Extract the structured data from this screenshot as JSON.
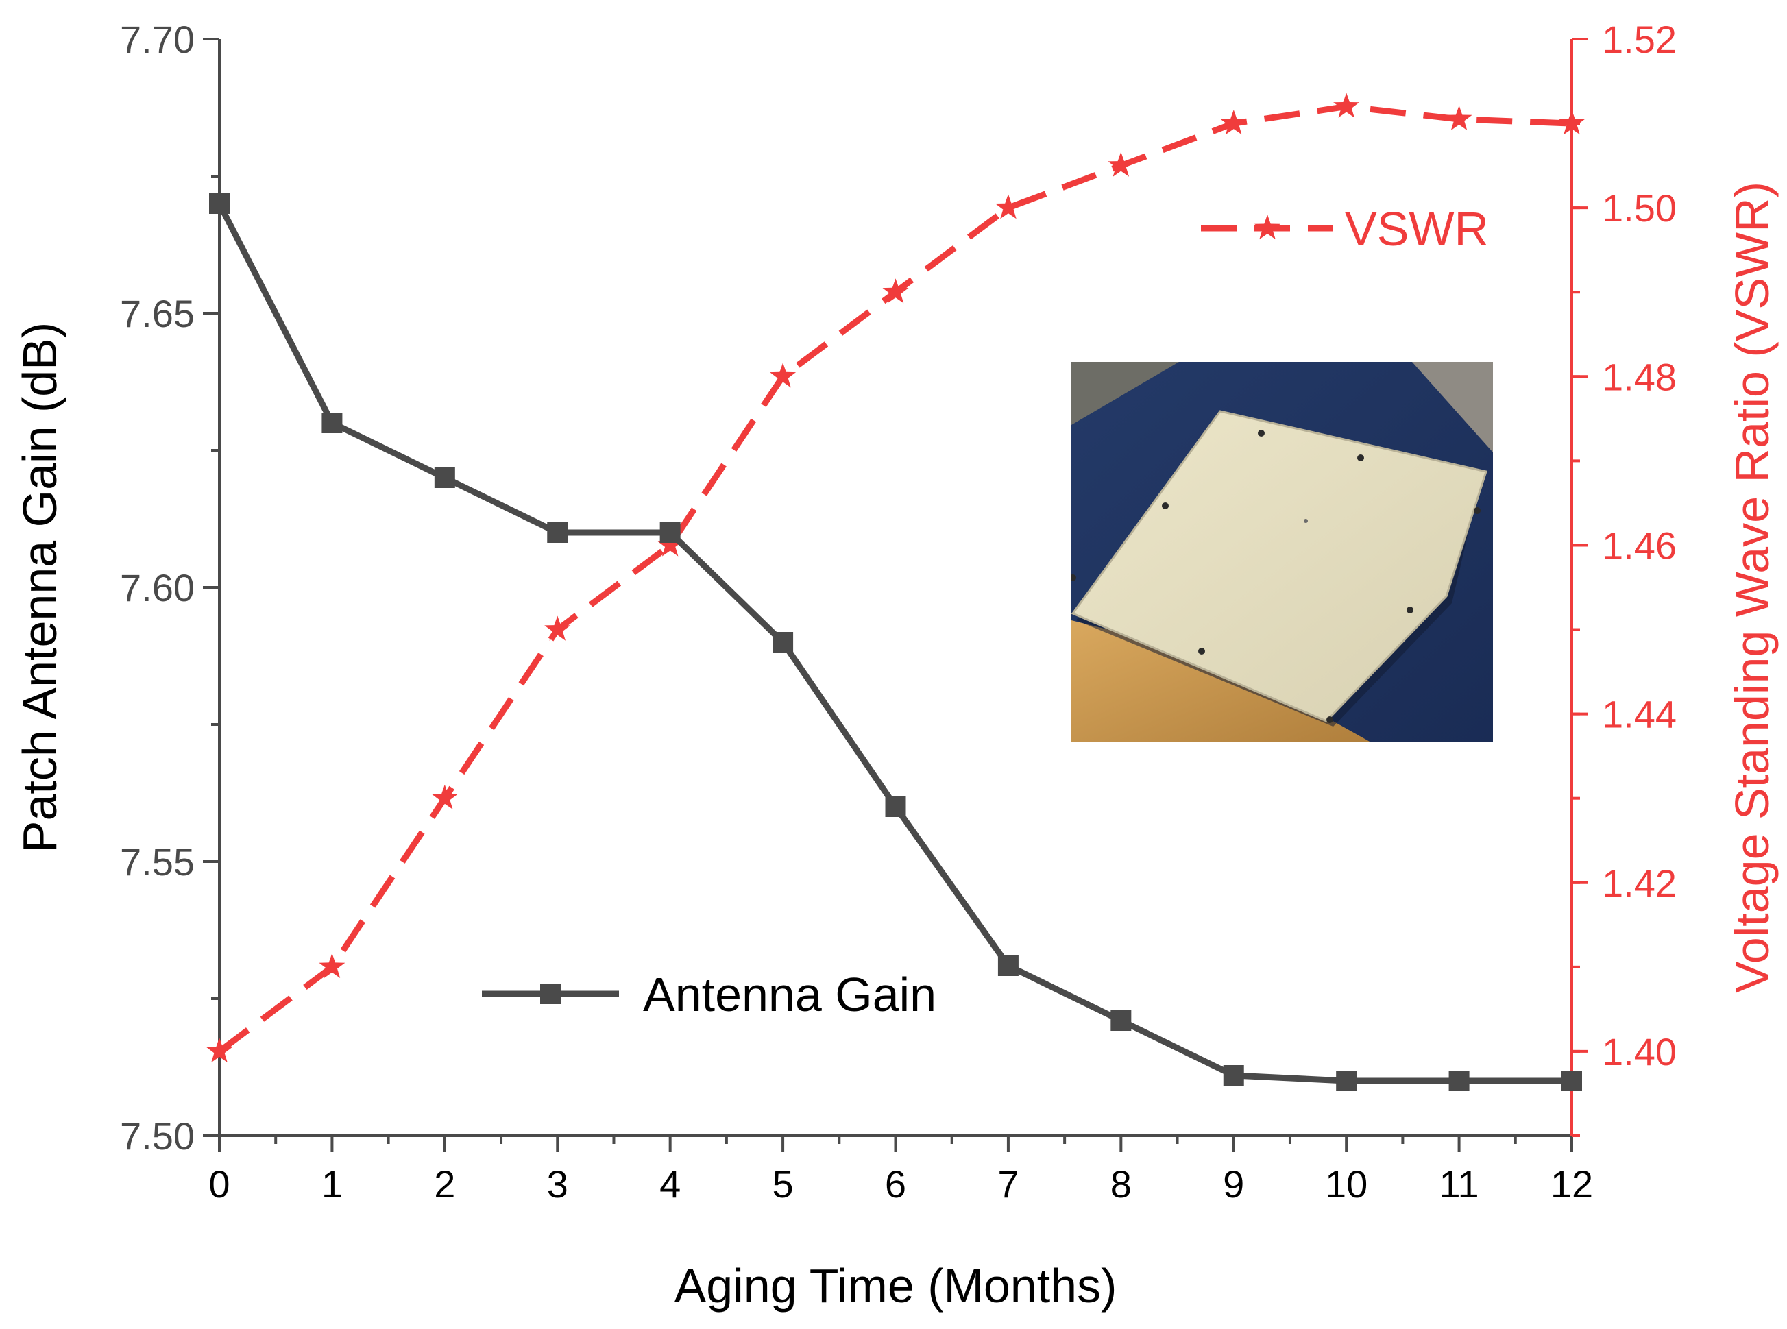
{
  "chart_data": {
    "type": "line",
    "title": "",
    "xlabel": "Aging Time (Months)",
    "ylabel": "Patch Antenna Gain (dB)",
    "y2label": "Voltage Standing Wave Ratio (VSWR)",
    "x": [
      0,
      1,
      2,
      3,
      4,
      5,
      6,
      7,
      8,
      9,
      10,
      11,
      12
    ],
    "xlim": [
      0,
      12
    ],
    "ylim": [
      7.5,
      7.7
    ],
    "y2lim": [
      1.39,
      1.52
    ],
    "x_ticks": [
      "0",
      "1",
      "2",
      "3",
      "4",
      "5",
      "6",
      "7",
      "8",
      "9",
      "10",
      "11",
      "12"
    ],
    "y_ticks": [
      "7.50",
      "7.55",
      "7.60",
      "7.65",
      "7.70"
    ],
    "y2_ticks": [
      "1.40",
      "1.42",
      "1.44",
      "1.46",
      "1.48",
      "1.50",
      "1.52"
    ],
    "grid": false,
    "series": [
      {
        "name": "Antenna Gain",
        "axis": "left",
        "color": "#4a4a4a",
        "marker": "square",
        "line_style": "solid",
        "values": [
          7.67,
          7.63,
          7.62,
          7.61,
          7.61,
          7.59,
          7.56,
          7.531,
          7.521,
          7.511,
          7.51,
          7.51,
          7.51
        ]
      },
      {
        "name": "VSWR",
        "axis": "right",
        "color": "#f03c3c",
        "marker": "star",
        "line_style": "dashed",
        "values": [
          1.4,
          1.41,
          1.43,
          1.45,
          1.46,
          1.48,
          1.49,
          1.5,
          1.505,
          1.51,
          1.512,
          1.5105,
          1.51
        ]
      }
    ],
    "legend": [
      {
        "series": "Antenna Gain",
        "placement": "bottom-center"
      },
      {
        "series": "VSWR",
        "placement": "top-right"
      }
    ],
    "inset": "photo of a beige square patch antenna panel with small screw holes, on a dark blue surface"
  }
}
